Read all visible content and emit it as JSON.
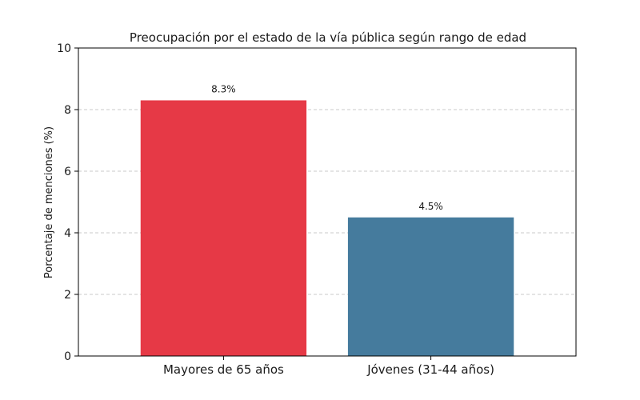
{
  "chart_data": {
    "type": "bar",
    "title": "Preocupación por el estado de la vía pública según rango de edad",
    "xlabel": "",
    "ylabel": "Porcentaje de menciones (%)",
    "categories": [
      "Mayores de 65 años",
      "Jóvenes (31-44 años)"
    ],
    "values": [
      8.3,
      4.5
    ],
    "data_labels": [
      "8.3%",
      "4.5%"
    ],
    "colors": [
      "#e63946",
      "#457b9d"
    ],
    "ylim": [
      0,
      10
    ],
    "yticks": [
      0,
      2,
      4,
      6,
      8,
      10
    ],
    "grid": true
  }
}
